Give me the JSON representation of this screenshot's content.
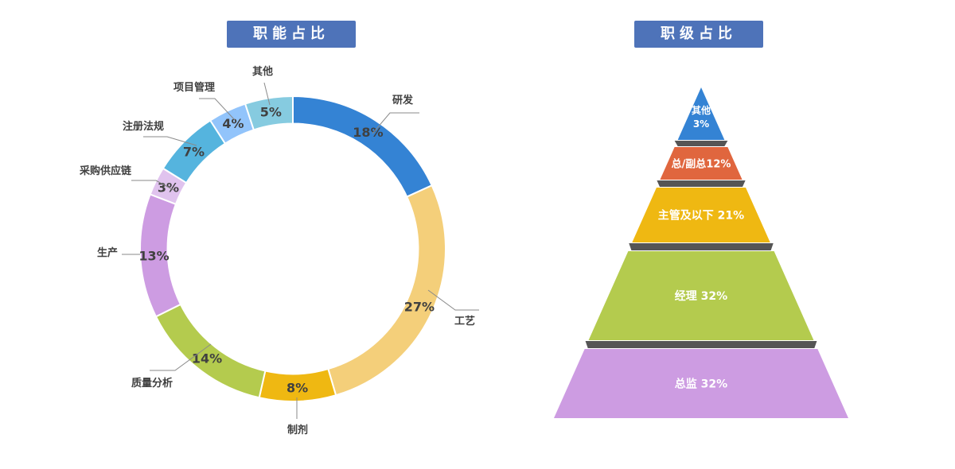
{
  "chart_data": [
    {
      "type": "pie",
      "title": "职能占比",
      "categories": [
        "研发",
        "工艺",
        "制剂",
        "质量分析",
        "生产",
        "采购供应链",
        "注册法规",
        "项目管理",
        "其他"
      ],
      "values": [
        18,
        27,
        8,
        14,
        13,
        3,
        7,
        4,
        5
      ],
      "value_labels": [
        "18%",
        "27%",
        "8%",
        "14%",
        "13%",
        "3%",
        "7%",
        "4%",
        "5%"
      ],
      "colors": [
        "#3483d4",
        "#f4cf7a",
        "#efb812",
        "#b4cb4e",
        "#cd9ce2",
        "#e0c3ee",
        "#55b4de",
        "#92c4fb",
        "#86cbe0"
      ],
      "inner_radius_ratio": 0.82
    },
    {
      "type": "pyramid",
      "title": "职级占比",
      "levels": [
        {
          "label": "其他",
          "value_label": "3%",
          "value": 3,
          "color": "#3483d4"
        },
        {
          "label": "总/副总",
          "value_label": "12%",
          "value": 12,
          "color": "#e0663e"
        },
        {
          "label": "主管及以下",
          "value_label": "21%",
          "value": 21,
          "color": "#efb812"
        },
        {
          "label": "经理",
          "value_label": "32%",
          "value": 32,
          "color": "#b4cb4e"
        },
        {
          "label": "总监",
          "value_label": "32%",
          "value": 32,
          "color": "#cd9ce2"
        }
      ]
    }
  ]
}
